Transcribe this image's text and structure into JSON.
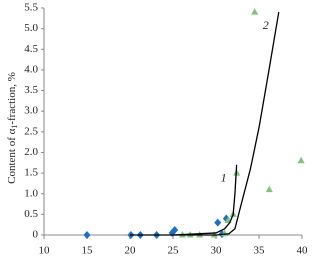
{
  "chart_data": {
    "type": "scatter",
    "ylabel": [
      "Content of α",
      "1",
      "-fraction, %"
    ],
    "xlim": [
      10,
      40
    ],
    "xticks": [
      10,
      15,
      20,
      25,
      30,
      35,
      40
    ],
    "ylim": [
      0,
      5.5
    ],
    "yticks": [
      0,
      0.5,
      {
        "value": 1,
        "label": "1.0"
      },
      1.5,
      {
        "value": 2,
        "label": "2.0"
      },
      2.5,
      {
        "value": 3,
        "label": "3.0"
      },
      3.5,
      {
        "value": 4,
        "label": "4.0"
      },
      4.5,
      {
        "value": 5,
        "label": "5.0"
      },
      5.5
    ],
    "grid": false,
    "series": [
      {
        "marker": "diamond",
        "color": "#1f6fc0",
        "x": [
          15,
          20.1,
          21.2,
          23.1,
          24.9,
          25.2,
          30.2,
          30.7,
          31.2
        ],
        "y": [
          0,
          0,
          0,
          0,
          0.05,
          0.12,
          0.3,
          0.02,
          0.4
        ]
      },
      {
        "marker": "triangle",
        "color": "#7dc47d",
        "x": [
          26.1,
          27,
          28.1,
          29.8,
          31,
          31.4,
          32,
          32.4,
          34.5,
          36.2,
          39.9
        ],
        "y": [
          0,
          0,
          0,
          0,
          0.03,
          0.35,
          0.5,
          1.5,
          5.4,
          1.1,
          1.8
        ]
      },
      {
        "marker": "line",
        "color": "#000000",
        "label": "1",
        "x": [
          20,
          25,
          30,
          31,
          31.6,
          32,
          32.2,
          32.4
        ],
        "y": [
          0,
          0,
          0.05,
          0.15,
          0.3,
          0.5,
          1.0,
          1.7
        ]
      },
      {
        "marker": "line",
        "color": "#000000",
        "label": "2",
        "x": [
          25,
          30,
          31.5,
          32.2,
          33,
          34,
          35,
          36,
          37.3
        ],
        "y": [
          0,
          0,
          0.03,
          0.15,
          0.8,
          1.6,
          2.6,
          3.8,
          5.4
        ]
      }
    ]
  }
}
